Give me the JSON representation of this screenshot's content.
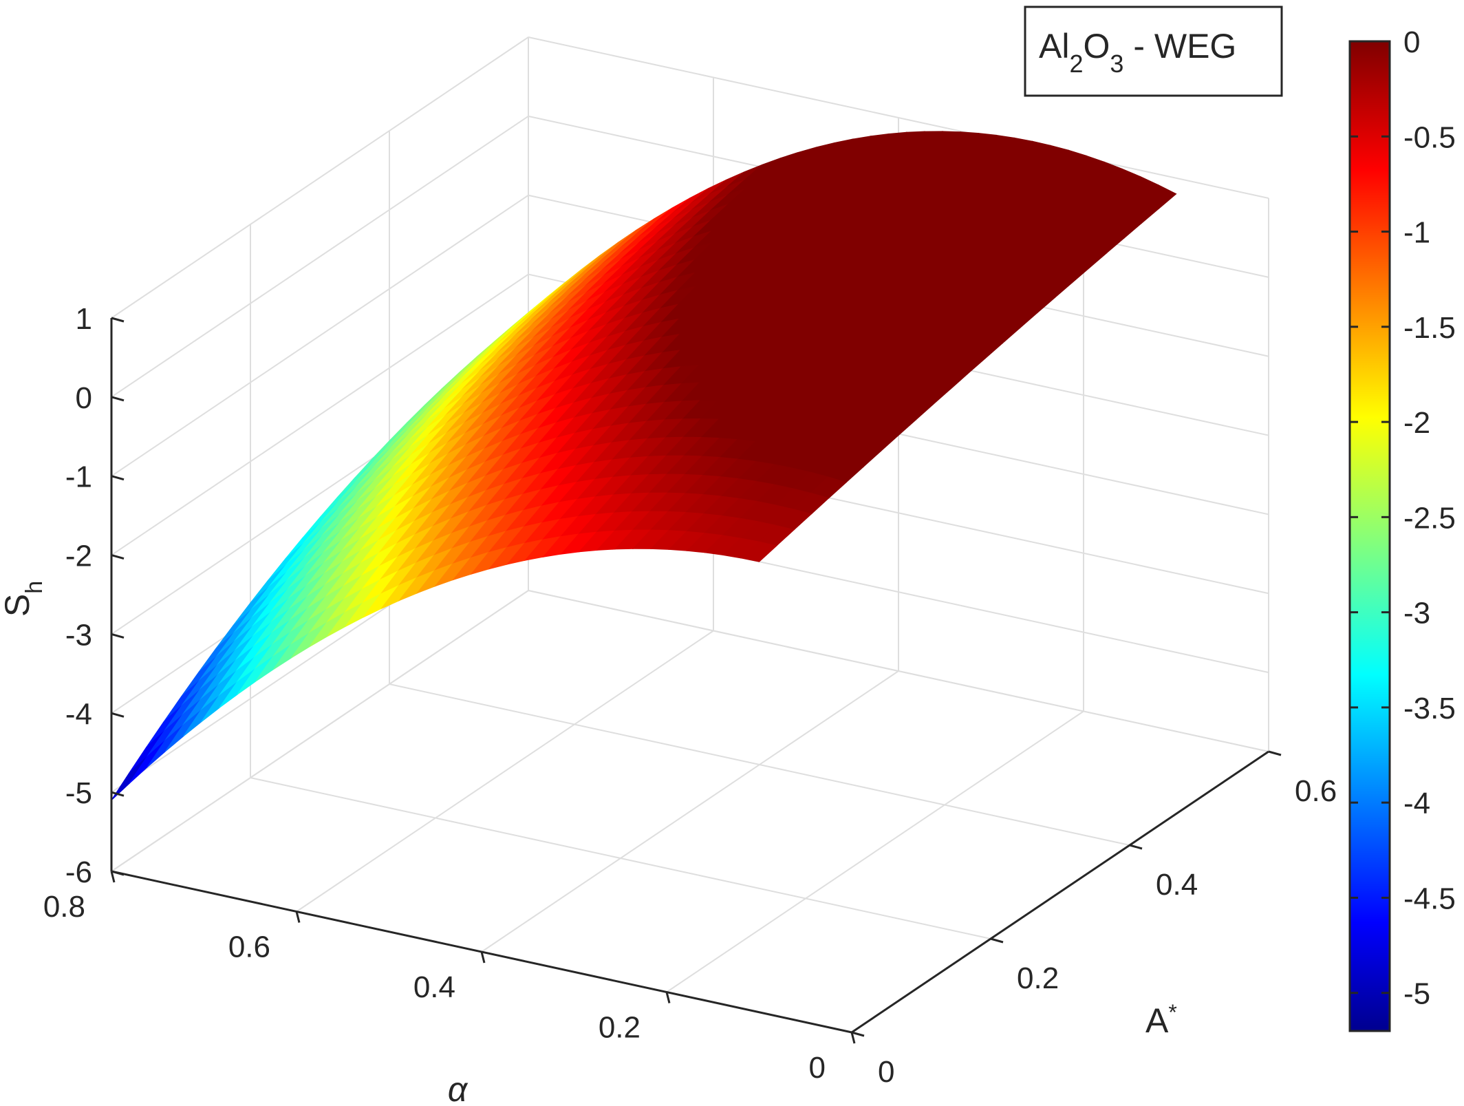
{
  "chart_data": {
    "type": "surface",
    "title": "",
    "legend_text": {
      "main1": "Al",
      "sub1": "2",
      "main2": "O",
      "sub2": "3",
      "rest": " - WEG"
    },
    "xlabel": "α",
    "ylabel_main": "A",
    "ylabel_sup": "*",
    "zlabel_main": "S",
    "zlabel_sub": "h",
    "xlim": [
      0,
      0.8
    ],
    "ylim": [
      0,
      0.6
    ],
    "zlim": [
      -6,
      1
    ],
    "x_ticks": [
      "0",
      "0.2",
      "0.4",
      "0.6",
      "0.8"
    ],
    "x_tick_values": [
      0,
      0.2,
      0.4,
      0.6,
      0.8
    ],
    "y_ticks": [
      "0",
      "0.2",
      "0.4",
      "0.6"
    ],
    "y_tick_values": [
      0,
      0.2,
      0.4,
      0.6
    ],
    "z_ticks": [
      "1",
      "0",
      "-1",
      "-2",
      "-3",
      "-4",
      "-5",
      "-6"
    ],
    "z_tick_values": [
      1,
      0,
      -1,
      -2,
      -3,
      -4,
      -5,
      -6
    ],
    "colorbar": {
      "colormap": "jet",
      "range": [
        -5.2,
        0
      ],
      "ticks": [
        "0",
        "-0.5",
        "-1",
        "-1.5",
        "-2",
        "-2.5",
        "-3",
        "-3.5",
        "-4",
        "-4.5",
        "-5"
      ],
      "tick_values": [
        0,
        -0.5,
        -1,
        -1.5,
        -2,
        -2.5,
        -3,
        -3.5,
        -4,
        -4.5,
        -5
      ]
    },
    "grid": true,
    "surface": {
      "alpha_range": [
        0.1,
        0.8
      ],
      "astar_range": [
        0,
        0.6
      ],
      "corner_values": [
        {
          "alpha": 0.8,
          "astar": 0.0,
          "sh": -5.1
        },
        {
          "alpha": 0.8,
          "astar": 0.6,
          "sh": -2.5
        },
        {
          "alpha": 0.1,
          "astar": 0.0,
          "sh": -0.3
        },
        {
          "alpha": 0.1,
          "astar": 0.6,
          "sh": 0.8
        }
      ],
      "mid_values": [
        {
          "alpha": 0.45,
          "astar": 0.0,
          "sh": -1.5
        },
        {
          "alpha": 0.45,
          "astar": 0.6,
          "sh": 0.6
        },
        {
          "alpha": 0.1,
          "astar": 0.3,
          "sh": 0.3
        },
        {
          "alpha": 0.8,
          "astar": 0.3,
          "sh": -3.3
        }
      ]
    }
  }
}
